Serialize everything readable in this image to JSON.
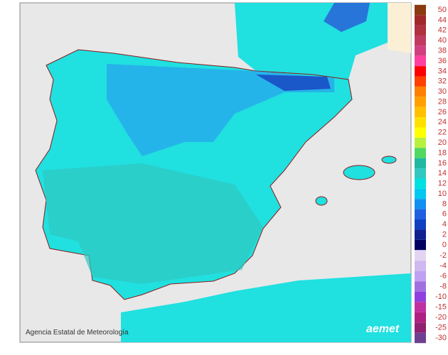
{
  "map": {
    "credit": "Agencia Estatal de Meteorología",
    "logo": "aemet",
    "legend_positive": [
      {
        "value": 50,
        "color": "#8b3a0f"
      },
      {
        "value": 44,
        "color": "#a0282a"
      },
      {
        "value": 42,
        "color": "#b03040"
      },
      {
        "value": 40,
        "color": "#c03a60"
      },
      {
        "value": 38,
        "color": "#d04080"
      },
      {
        "value": 36,
        "color": "#ff40a0"
      },
      {
        "value": 34,
        "color": "#ff0000"
      },
      {
        "value": 32,
        "color": "#ff4000"
      },
      {
        "value": 30,
        "color": "#ff7f00"
      },
      {
        "value": 28,
        "color": "#ffa000"
      },
      {
        "value": 26,
        "color": "#ffc000"
      },
      {
        "value": 24,
        "color": "#ffe000"
      },
      {
        "value": 22,
        "color": "#ffff00"
      },
      {
        "value": 20,
        "color": "#b8f040"
      },
      {
        "value": 18,
        "color": "#50d860"
      },
      {
        "value": 16,
        "color": "#20b8a0"
      },
      {
        "value": 14,
        "color": "#30c8c0"
      },
      {
        "value": 12,
        "color": "#00e0e0"
      },
      {
        "value": 10,
        "color": "#00c8f0"
      },
      {
        "value": 8,
        "color": "#1090f0"
      },
      {
        "value": 6,
        "color": "#2060e0"
      },
      {
        "value": 4,
        "color": "#1040c0"
      },
      {
        "value": 2,
        "color": "#102090"
      },
      {
        "value": 0,
        "color": "#000060"
      }
    ],
    "legend_negative": [
      {
        "value": -2,
        "color": "#e4d4f4"
      },
      {
        "value": -4,
        "color": "#d0b8f0"
      },
      {
        "value": -6,
        "color": "#c0a0f0"
      },
      {
        "value": -8,
        "color": "#a070e0"
      },
      {
        "value": -10,
        "color": "#9040e0"
      },
      {
        "value": -15,
        "color": "#c030a0"
      },
      {
        "value": -20,
        "color": "#b02080"
      },
      {
        "value": -25,
        "color": "#902070"
      },
      {
        "value": -30,
        "color": "#704090"
      }
    ]
  }
}
